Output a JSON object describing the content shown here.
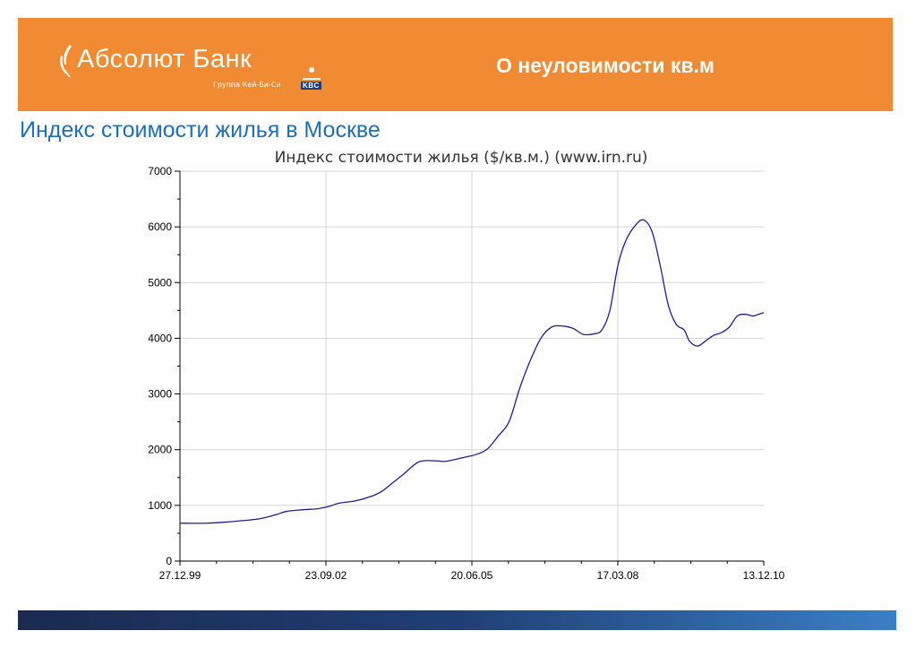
{
  "header": {
    "logo_text": "Абсолют Банк",
    "logo_subtext": "Группа Кей-Би-Си",
    "logo_badge": "KBC",
    "title": "О неуловимости кв.м",
    "background_color": "#f08a33"
  },
  "page_title": "Индекс стоимости жилья в Москве",
  "chart_data": {
    "type": "line",
    "title": "Индекс стоимости жилья ($/кв.м.) (www.irn.ru)",
    "xlabel": "",
    "ylabel": "",
    "x_tick_labels": [
      "27.12.99",
      "23.09.02",
      "20.06.05",
      "17.03.08",
      "13.12.10"
    ],
    "x_range": [
      2000.0,
      2011.0
    ],
    "x_ticks": [
      2000.0,
      2002.75,
      2005.5,
      2008.25,
      2011.0
    ],
    "ylim": [
      0,
      7000
    ],
    "y_ticks": [
      0,
      1000,
      2000,
      3000,
      4000,
      5000,
      6000,
      7000
    ],
    "grid": true,
    "line_color": "#1f1f8f",
    "series": [
      {
        "x": [
          2000.0,
          2000.5,
          2001.0,
          2001.5,
          2001.8,
          2002.0,
          2002.3,
          2002.6,
          2002.8,
          2003.0,
          2003.3,
          2003.6,
          2003.8,
          2004.0,
          2004.2,
          2004.5,
          2004.8,
          2005.0,
          2005.3,
          2005.6,
          2005.8,
          2006.0,
          2006.2,
          2006.4,
          2006.6,
          2006.8,
          2007.0,
          2007.2,
          2007.4,
          2007.6,
          2007.8,
          2007.95,
          2008.1,
          2008.25,
          2008.4,
          2008.6,
          2008.75,
          2008.9,
          2009.05,
          2009.2,
          2009.35,
          2009.5,
          2009.6,
          2009.75,
          2009.9,
          2010.05,
          2010.2,
          2010.35,
          2010.5,
          2010.65,
          2010.8,
          2010.9,
          2011.0
        ],
        "y": [
          680,
          680,
          710,
          760,
          830,
          890,
          920,
          940,
          980,
          1040,
          1080,
          1160,
          1250,
          1400,
          1550,
          1780,
          1800,
          1790,
          1850,
          1920,
          2020,
          2250,
          2500,
          3100,
          3600,
          4000,
          4200,
          4220,
          4180,
          4070,
          4080,
          4150,
          4500,
          5300,
          5750,
          6050,
          6120,
          5900,
          5300,
          4600,
          4250,
          4150,
          3950,
          3860,
          3950,
          4050,
          4100,
          4200,
          4400,
          4430,
          4400,
          4430,
          4460
        ]
      }
    ]
  },
  "footer": {
    "gradient_start": "#1a2a50",
    "gradient_end": "#3a7fc5"
  }
}
